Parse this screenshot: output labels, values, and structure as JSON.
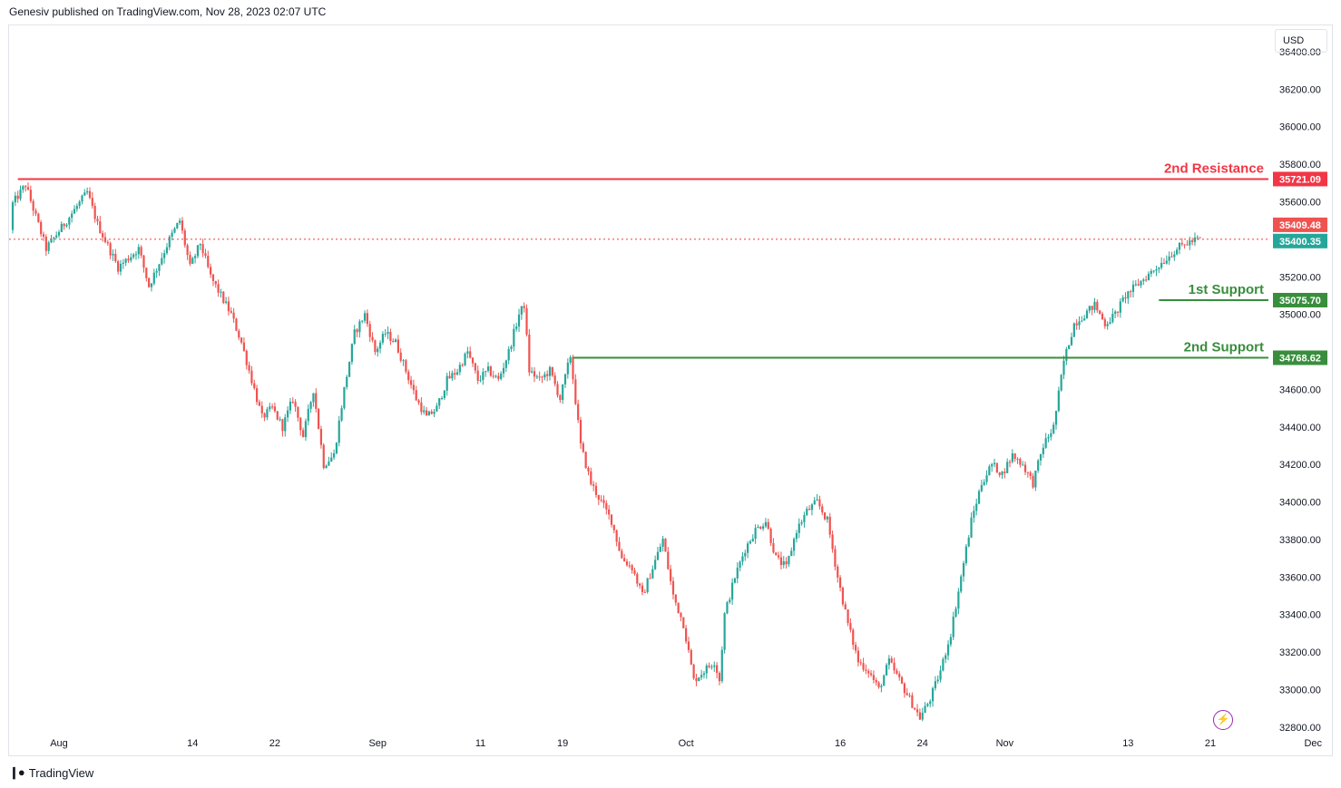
{
  "header": {
    "text": "Genesiv published on TradingView.com, Nov 28, 2023 02:07 UTC"
  },
  "currency": "USD",
  "footer": {
    "brand": "TradingView",
    "logo": "tradingview-logo-icon"
  },
  "colors": {
    "up": "#26a69a",
    "down": "#ef5350",
    "resistance": "#f23645",
    "support": "#388e3c",
    "flash": "#9c27b0"
  },
  "chart_data": {
    "type": "candlestick",
    "y_ticks": [
      36400,
      36200,
      36000,
      35800,
      35600,
      35200,
      35000,
      34600,
      34400,
      34200,
      34000,
      33800,
      33600,
      33400,
      33200,
      33000,
      32800
    ],
    "y_tick_labels": [
      "36400.00",
      "36200.00",
      "36000.00",
      "35800.00",
      "35600.00",
      "35200.00",
      "35000.00",
      "34600.00",
      "34400.00",
      "34200.00",
      "34000.00",
      "33800.00",
      "33600.00",
      "33400.00",
      "33200.00",
      "33000.00",
      "32800.00"
    ],
    "ylim": [
      32780,
      36540
    ],
    "x_ticks": [
      {
        "label": "Aug",
        "day": 1
      },
      {
        "label": "14",
        "day": 14
      },
      {
        "label": "22",
        "day": 22
      },
      {
        "label": "Sep",
        "day": 32
      },
      {
        "label": "11",
        "day": 42
      },
      {
        "label": "19",
        "day": 50
      },
      {
        "label": "Oct",
        "day": 62
      },
      {
        "label": "16",
        "day": 77
      },
      {
        "label": "24",
        "day": 85
      },
      {
        "label": "Nov",
        "day": 93
      },
      {
        "label": "13",
        "day": 105
      },
      {
        "label": "21",
        "day": 113
      },
      {
        "label": "Dec",
        "day": 123
      }
    ],
    "levels": [
      {
        "name": "2nd Resistance",
        "value": 35721.09,
        "label": "35721.09",
        "color": "#f23645",
        "start_day": -3
      },
      {
        "name": "1st Support",
        "value": 35075.7,
        "label": "35075.70",
        "color": "#388e3c",
        "start_day": 108
      },
      {
        "name": "2nd Support",
        "value": 34768.62,
        "label": "34768.62",
        "color": "#388e3c",
        "start_day": 51
      }
    ],
    "current": {
      "high": 35409.48,
      "high_label": "35409.48",
      "price": 35400.35,
      "price_label": "35400.35"
    },
    "path": [
      [
        -5,
        35450
      ],
      [
        -2,
        35690
      ],
      [
        0,
        35350
      ],
      [
        2,
        35500
      ],
      [
        4,
        35650
      ],
      [
        5,
        35480
      ],
      [
        7,
        35250
      ],
      [
        9,
        35350
      ],
      [
        10,
        35150
      ],
      [
        12,
        35400
      ],
      [
        13,
        35500
      ],
      [
        14,
        35250
      ],
      [
        15,
        35380
      ],
      [
        16,
        35200
      ],
      [
        18,
        35000
      ],
      [
        19,
        34850
      ],
      [
        20,
        34650
      ],
      [
        21,
        34450
      ],
      [
        22,
        34500
      ],
      [
        23,
        34400
      ],
      [
        24,
        34550
      ],
      [
        25,
        34350
      ],
      [
        26,
        34600
      ],
      [
        27,
        34200
      ],
      [
        28,
        34250
      ],
      [
        29,
        34600
      ],
      [
        30,
        34900
      ],
      [
        31,
        35000
      ],
      [
        32,
        34800
      ],
      [
        33,
        34900
      ],
      [
        34,
        34850
      ],
      [
        35,
        34700
      ],
      [
        36,
        34550
      ],
      [
        37,
        34450
      ],
      [
        38,
        34500
      ],
      [
        39,
        34650
      ],
      [
        40,
        34700
      ],
      [
        41,
        34800
      ],
      [
        42,
        34650
      ],
      [
        43,
        34700
      ],
      [
        44,
        34650
      ],
      [
        45,
        34800
      ],
      [
        46,
        35000
      ],
      [
        46.5,
        35050
      ],
      [
        47,
        34700
      ],
      [
        48,
        34650
      ],
      [
        49,
        34700
      ],
      [
        50,
        34550
      ],
      [
        51,
        34780
      ],
      [
        52,
        34300
      ],
      [
        53,
        34100
      ],
      [
        54,
        34000
      ],
      [
        55,
        33900
      ],
      [
        56,
        33700
      ],
      [
        57,
        33650
      ],
      [
        58,
        33500
      ],
      [
        59,
        33650
      ],
      [
        60,
        33800
      ],
      [
        61,
        33500
      ],
      [
        62,
        33350
      ],
      [
        63,
        33050
      ],
      [
        64,
        33100
      ],
      [
        65,
        33150
      ],
      [
        65.5,
        33050
      ],
      [
        66,
        33400
      ],
      [
        67,
        33600
      ],
      [
        68,
        33750
      ],
      [
        69,
        33850
      ],
      [
        70,
        33900
      ],
      [
        71,
        33700
      ],
      [
        72,
        33650
      ],
      [
        73,
        33850
      ],
      [
        74,
        33950
      ],
      [
        75,
        34000
      ],
      [
        76,
        33900
      ],
      [
        77,
        33600
      ],
      [
        78,
        33350
      ],
      [
        79,
        33150
      ],
      [
        80,
        33100
      ],
      [
        81,
        33000
      ],
      [
        82,
        33150
      ],
      [
        83,
        33050
      ],
      [
        84,
        32950
      ],
      [
        85,
        32850
      ],
      [
        86,
        32950
      ],
      [
        87,
        33100
      ],
      [
        88,
        33300
      ],
      [
        89,
        33600
      ],
      [
        90,
        33900
      ],
      [
        91,
        34100
      ],
      [
        92,
        34200
      ],
      [
        93,
        34150
      ],
      [
        94,
        34250
      ],
      [
        95,
        34200
      ],
      [
        96,
        34100
      ],
      [
        97,
        34300
      ],
      [
        98,
        34400
      ],
      [
        99,
        34750
      ],
      [
        100,
        34950
      ],
      [
        101,
        35000
      ],
      [
        102,
        35050
      ],
      [
        103,
        34950
      ],
      [
        104,
        35000
      ],
      [
        105,
        35100
      ],
      [
        106,
        35150
      ],
      [
        107,
        35200
      ],
      [
        108,
        35250
      ],
      [
        109,
        35300
      ],
      [
        110,
        35350
      ],
      [
        111,
        35380
      ],
      [
        112,
        35400
      ]
    ]
  }
}
